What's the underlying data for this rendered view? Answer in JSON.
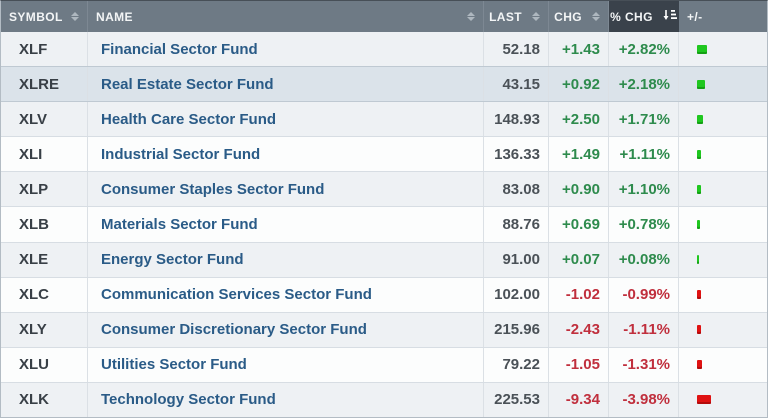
{
  "colors": {
    "positive_text": "#2e8b4d",
    "negative_text": "#c02f3d",
    "bar_positive": "#1fc71f",
    "bar_negative": "#df1212",
    "header_bg": "#6e7a85",
    "header_active_bg": "#3a424b",
    "row_alt_bg": "#eef1f4",
    "row_highlight_bg": "#dbe3ea",
    "link_color": "#2a5b87"
  },
  "table": {
    "columns": [
      {
        "key": "symbol",
        "label": "SYMBOL",
        "sortable": true,
        "sorted": null,
        "style": "spread"
      },
      {
        "key": "name",
        "label": "NAME",
        "sortable": true,
        "sorted": null,
        "style": "spread"
      },
      {
        "key": "last",
        "label": "LAST",
        "sortable": true,
        "sorted": null,
        "style": "right"
      },
      {
        "key": "chg",
        "label": "CHG",
        "sortable": true,
        "sorted": null,
        "style": "right"
      },
      {
        "key": "pct_chg",
        "label": "% CHG",
        "sortable": true,
        "sorted": "desc",
        "style": "center"
      },
      {
        "key": "bar",
        "label": "+/-",
        "sortable": false,
        "sorted": null,
        "style": ""
      }
    ],
    "rows": [
      {
        "symbol": "XLF",
        "name": "Financial Sector Fund",
        "last": "52.18",
        "chg": "+1.43",
        "pct_chg": "+2.82%",
        "pct_value": 2.82,
        "direction": "up",
        "highlighted": false
      },
      {
        "symbol": "XLRE",
        "name": "Real Estate Sector Fund",
        "last": "43.15",
        "chg": "+0.92",
        "pct_chg": "+2.18%",
        "pct_value": 2.18,
        "direction": "up",
        "highlighted": true
      },
      {
        "symbol": "XLV",
        "name": "Health Care Sector Fund",
        "last": "148.93",
        "chg": "+2.50",
        "pct_chg": "+1.71%",
        "pct_value": 1.71,
        "direction": "up",
        "highlighted": false
      },
      {
        "symbol": "XLI",
        "name": "Industrial Sector Fund",
        "last": "136.33",
        "chg": "+1.49",
        "pct_chg": "+1.11%",
        "pct_value": 1.11,
        "direction": "up",
        "highlighted": false
      },
      {
        "symbol": "XLP",
        "name": "Consumer Staples Sector Fund",
        "last": "83.08",
        "chg": "+0.90",
        "pct_chg": "+1.10%",
        "pct_value": 1.1,
        "direction": "up",
        "highlighted": false
      },
      {
        "symbol": "XLB",
        "name": "Materials Sector Fund",
        "last": "88.76",
        "chg": "+0.69",
        "pct_chg": "+0.78%",
        "pct_value": 0.78,
        "direction": "up",
        "highlighted": false
      },
      {
        "symbol": "XLE",
        "name": "Energy Sector Fund",
        "last": "91.00",
        "chg": "+0.07",
        "pct_chg": "+0.08%",
        "pct_value": 0.08,
        "direction": "up",
        "highlighted": false
      },
      {
        "symbol": "XLC",
        "name": "Communication Services Sector Fund",
        "last": "102.00",
        "chg": "-1.02",
        "pct_chg": "-0.99%",
        "pct_value": -0.99,
        "direction": "down",
        "highlighted": false
      },
      {
        "symbol": "XLY",
        "name": "Consumer Discretionary Sector Fund",
        "last": "215.96",
        "chg": "-2.43",
        "pct_chg": "-1.11%",
        "pct_value": -1.11,
        "direction": "down",
        "highlighted": false
      },
      {
        "symbol": "XLU",
        "name": "Utilities Sector Fund",
        "last": "79.22",
        "chg": "-1.05",
        "pct_chg": "-1.31%",
        "pct_value": -1.31,
        "direction": "down",
        "highlighted": false
      },
      {
        "symbol": "XLK",
        "name": "Technology Sector Fund",
        "last": "225.53",
        "chg": "-9.34",
        "pct_chg": "-3.98%",
        "pct_value": -3.98,
        "direction": "down",
        "highlighted": false
      }
    ]
  }
}
